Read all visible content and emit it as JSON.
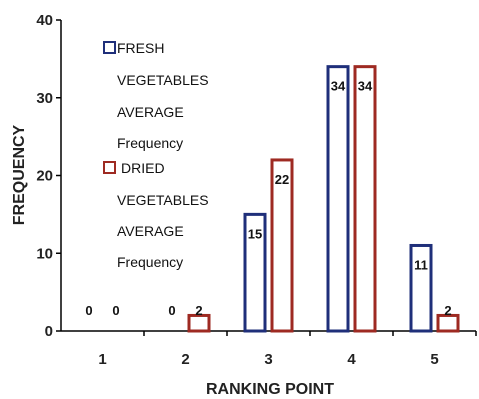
{
  "chart_data": {
    "type": "bar",
    "title": "",
    "xlabel": "RANKING POINT",
    "ylabel": "FREQUENCY",
    "categories": [
      "1",
      "2",
      "3",
      "4",
      "5"
    ],
    "ylim": [
      0,
      40
    ],
    "yticks": [
      "0",
      "10",
      "20",
      "30",
      "40"
    ],
    "grid": false,
    "legend_position": "top-left",
    "series": [
      {
        "name_lines": [
          "FRESH",
          "VEGETABLES",
          "AVERAGE",
          "Frequency"
        ],
        "color": "#1f2f7a",
        "values": [
          0,
          0,
          15,
          34,
          11
        ],
        "labels": [
          "0",
          "0",
          "15",
          "34",
          "11"
        ]
      },
      {
        "name_lines": [
          "DRIED",
          "VEGETABLES",
          "AVERAGE",
          "Frequency"
        ],
        "color": "#9e2a22",
        "values": [
          0,
          2,
          22,
          34,
          2
        ],
        "labels": [
          "0",
          "2",
          "22",
          "34",
          "2"
        ]
      }
    ]
  }
}
